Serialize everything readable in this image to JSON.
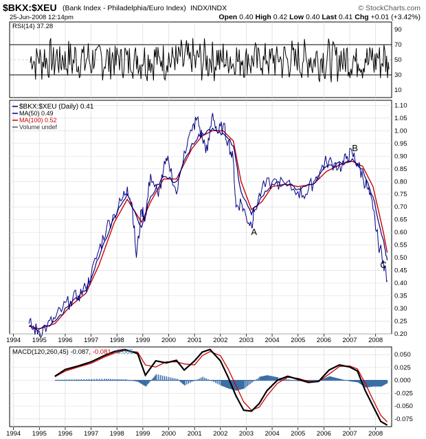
{
  "header": {
    "symbol": "$BKX:$XEU",
    "name": "(Bank Index - Philadelphia/Euro Index)",
    "exchange": "INDX/INDX",
    "date": "25-Jun-2008 12:14pm",
    "open_label": "Open",
    "open": "0.40",
    "high_label": "High",
    "high": "0.42",
    "low_label": "Low",
    "low": "0.40",
    "last_label": "Last",
    "last": "0.41",
    "chg_label": "Chg",
    "chg": "+0.01 (+3.42%)",
    "brand": "© StockCharts.com"
  },
  "rsi": {
    "label": "RSI(14) 37.28",
    "ticks": [
      90,
      70,
      50,
      30,
      10
    ],
    "levels": [
      70,
      30
    ]
  },
  "main": {
    "legend": [
      {
        "text": "$BKX:$XEU (Daily) 0.41",
        "color": "#000080"
      },
      {
        "text": "MA(50) 0.49",
        "color": "#000080"
      },
      {
        "text": "MA(100) 0.52",
        "color": "#cc0000"
      },
      {
        "text": "Volume undef",
        "color": "#555555"
      }
    ],
    "annotations": [
      {
        "text": "A",
        "x": 2003.3,
        "y": 0.59
      },
      {
        "text": "B",
        "x": 2007.2,
        "y": 0.92
      },
      {
        "text": "C",
        "x": 2008.3,
        "y": 0.46
      }
    ]
  },
  "macd": {
    "label_prefix": "MACD(120,260,45)",
    "v1": "-0.087,",
    "v2": "-0.081,",
    "v3": "-0.005",
    "c1": "#000000",
    "c2": "#cc0000",
    "c3": "#1f6fb2",
    "ticks": [
      "0.050",
      "0.025",
      "0.000",
      "-0.025",
      "-0.050",
      "-0.075"
    ]
  },
  "colors": {
    "price": "#000080",
    "ma50": "#000080",
    "ma100": "#cc0000",
    "macd_line": "#000000",
    "signal_line": "#cc0000",
    "histogram": "#3a6ea5",
    "rsi_line": "#000000"
  },
  "chart_data": [
    {
      "type": "line",
      "title": "RSI(14) 37.28",
      "ylim": [
        0,
        100
      ],
      "yticks": [
        10,
        30,
        50,
        70,
        90
      ],
      "reference_lines": [
        30,
        70
      ],
      "series": [
        {
          "name": "RSI(14)",
          "last": 37.28
        }
      ]
    },
    {
      "type": "line",
      "title": "$BKX:$XEU (Bank Index - Philadelphia/Euro Index) INDX/INDX",
      "xlabel": "",
      "ylabel": "",
      "xticks": [
        "1994",
        "1995",
        "1996",
        "1997",
        "1998",
        "1999",
        "2000",
        "2001",
        "2002",
        "2003",
        "2004",
        "2005",
        "2006",
        "2007",
        "2008"
      ],
      "ylim": [
        0.2,
        1.12
      ],
      "yticks": [
        0.2,
        0.25,
        0.3,
        0.35,
        0.4,
        0.45,
        0.5,
        0.55,
        0.6,
        0.65,
        0.7,
        0.75,
        0.8,
        0.85,
        0.9,
        0.95,
        1.0,
        1.05,
        1.1
      ],
      "series": [
        {
          "name": "$BKX:$XEU (Daily) 0.41",
          "x": [
            1994.6,
            1994.8,
            1995.0,
            1995.3,
            1995.6,
            1995.9,
            1996.2,
            1996.5,
            1996.8,
            1997.0,
            1997.3,
            1997.6,
            1997.9,
            1998.2,
            1998.4,
            1998.6,
            1998.75,
            1998.95,
            1999.1,
            1999.3,
            1999.6,
            1999.8,
            2000.0,
            2000.3,
            2000.6,
            2000.9,
            2001.1,
            2001.3,
            2001.5,
            2001.7,
            2001.9,
            2002.1,
            2002.3,
            2002.5,
            2002.6,
            2002.8,
            2003.0,
            2003.2,
            2003.3,
            2003.6,
            2004.0,
            2004.5,
            2005.0,
            2005.3,
            2005.6,
            2005.9,
            2006.1,
            2006.4,
            2006.7,
            2006.9,
            2007.1,
            2007.3,
            2007.5,
            2007.7,
            2007.9,
            2008.1,
            2008.3,
            2008.45
          ],
          "y": [
            0.24,
            0.22,
            0.21,
            0.23,
            0.26,
            0.3,
            0.33,
            0.35,
            0.38,
            0.43,
            0.53,
            0.62,
            0.67,
            0.73,
            0.78,
            0.7,
            0.5,
            0.69,
            0.66,
            0.83,
            0.74,
            0.85,
            0.88,
            0.75,
            0.92,
            1.0,
            1.05,
            0.97,
            0.92,
            1.07,
            0.99,
            1.02,
            0.96,
            0.88,
            0.7,
            0.72,
            0.66,
            0.63,
            0.68,
            0.77,
            0.8,
            0.79,
            0.76,
            0.75,
            0.8,
            0.85,
            0.88,
            0.87,
            0.86,
            0.9,
            0.91,
            0.87,
            0.82,
            0.77,
            0.69,
            0.56,
            0.49,
            0.41
          ]
        },
        {
          "name": "MA(50) 0.49",
          "x": [
            1994.6,
            1995.0,
            1995.6,
            1996.2,
            1996.8,
            1997.3,
            1997.9,
            1998.4,
            1998.95,
            1999.3,
            1999.8,
            2000.3,
            2000.9,
            2001.3,
            2001.7,
            2002.1,
            2002.5,
            2002.8,
            2003.2,
            2003.6,
            2004.0,
            2004.5,
            2005.0,
            2005.6,
            2006.1,
            2006.7,
            2007.1,
            2007.5,
            2007.9,
            2008.3,
            2008.45
          ],
          "y": [
            0.23,
            0.22,
            0.25,
            0.32,
            0.37,
            0.5,
            0.66,
            0.75,
            0.62,
            0.74,
            0.82,
            0.8,
            0.95,
            0.99,
            1.01,
            0.99,
            0.94,
            0.76,
            0.67,
            0.74,
            0.79,
            0.79,
            0.77,
            0.79,
            0.86,
            0.87,
            0.89,
            0.85,
            0.74,
            0.57,
            0.49
          ]
        },
        {
          "name": "MA(100) 0.52",
          "x": [
            1994.6,
            1995.0,
            1995.6,
            1996.2,
            1996.8,
            1997.3,
            1997.9,
            1998.4,
            1998.95,
            1999.3,
            1999.8,
            2000.3,
            2000.9,
            2001.3,
            2001.7,
            2002.1,
            2002.5,
            2002.8,
            2003.2,
            2003.6,
            2004.0,
            2004.5,
            2005.0,
            2005.6,
            2006.1,
            2006.7,
            2007.1,
            2007.5,
            2007.9,
            2008.3,
            2008.45
          ],
          "y": [
            0.23,
            0.22,
            0.24,
            0.31,
            0.36,
            0.47,
            0.64,
            0.73,
            0.64,
            0.72,
            0.81,
            0.81,
            0.93,
            0.98,
            1.0,
            1.0,
            0.96,
            0.8,
            0.69,
            0.72,
            0.78,
            0.79,
            0.78,
            0.79,
            0.84,
            0.87,
            0.88,
            0.86,
            0.78,
            0.6,
            0.52
          ]
        }
      ]
    },
    {
      "type": "line",
      "title": "MACD(120,260,45) -0.087, -0.081, -0.005",
      "xticks": [
        "1994",
        "1995",
        "1996",
        "1997",
        "1998",
        "1999",
        "2000",
        "2001",
        "2002",
        "2003",
        "2004",
        "2005",
        "2006",
        "2007",
        "2008"
      ],
      "ylim": [
        -0.09,
        0.065
      ],
      "yticks": [
        0.05,
        0.025,
        0.0,
        -0.025,
        -0.05,
        -0.075
      ],
      "series": [
        {
          "name": "MACD",
          "x": [
            1995.6,
            1996.0,
            1996.5,
            1997.0,
            1997.5,
            1997.9,
            1998.3,
            1998.8,
            1999.1,
            1999.5,
            1999.9,
            2000.3,
            2000.6,
            2001.0,
            2001.3,
            2001.6,
            2002.0,
            2002.3,
            2002.6,
            2002.9,
            2003.2,
            2003.5,
            2003.8,
            2004.2,
            2004.6,
            2005.0,
            2005.4,
            2005.8,
            2006.2,
            2006.6,
            2007.0,
            2007.3,
            2007.6,
            2007.9,
            2008.2,
            2008.45
          ],
          "y": [
            0.008,
            0.021,
            0.028,
            0.036,
            0.048,
            0.056,
            0.06,
            0.052,
            0.01,
            0.038,
            0.034,
            0.039,
            0.02,
            0.038,
            0.055,
            0.06,
            0.038,
            0.006,
            -0.03,
            -0.058,
            -0.06,
            -0.045,
            -0.02,
            0.0,
            0.008,
            0.002,
            -0.004,
            -0.002,
            0.02,
            0.03,
            0.026,
            0.018,
            -0.02,
            -0.05,
            -0.08,
            -0.087
          ]
        },
        {
          "name": "Signal",
          "x": [
            1995.6,
            1996.0,
            1996.5,
            1997.0,
            1997.5,
            1997.9,
            1998.3,
            1998.8,
            1999.1,
            1999.5,
            1999.9,
            2000.3,
            2000.6,
            2001.0,
            2001.3,
            2001.6,
            2002.0,
            2002.3,
            2002.6,
            2002.9,
            2003.2,
            2003.5,
            2003.8,
            2004.2,
            2004.6,
            2005.0,
            2005.4,
            2005.8,
            2006.2,
            2006.6,
            2007.0,
            2007.3,
            2007.6,
            2007.9,
            2008.2,
            2008.45
          ],
          "y": [
            0.007,
            0.018,
            0.026,
            0.033,
            0.045,
            0.053,
            0.058,
            0.055,
            0.03,
            0.026,
            0.036,
            0.036,
            0.032,
            0.03,
            0.048,
            0.056,
            0.048,
            0.022,
            -0.01,
            -0.042,
            -0.058,
            -0.052,
            -0.03,
            -0.006,
            0.006,
            0.004,
            -0.002,
            -0.002,
            0.012,
            0.027,
            0.028,
            0.022,
            -0.006,
            -0.038,
            -0.068,
            -0.081
          ]
        },
        {
          "name": "Histogram",
          "x": [
            1995.6,
            1996.5,
            1997.5,
            1998.3,
            1998.8,
            1999.1,
            1999.5,
            2000.3,
            2000.6,
            2001.3,
            2002.0,
            2002.3,
            2002.6,
            2002.9,
            2003.5,
            2003.8,
            2004.2,
            2005.0,
            2005.8,
            2006.2,
            2006.6,
            2007.0,
            2007.3,
            2007.6,
            2007.9,
            2008.2,
            2008.45
          ],
          "y": [
            0.001,
            0.002,
            0.003,
            0.002,
            -0.003,
            -0.012,
            0.012,
            0.003,
            -0.01,
            0.007,
            -0.01,
            -0.016,
            -0.02,
            -0.016,
            0.007,
            0.01,
            0.006,
            -0.002,
            0.0,
            0.008,
            0.003,
            -0.002,
            -0.004,
            -0.014,
            -0.012,
            -0.012,
            -0.005
          ]
        }
      ]
    }
  ]
}
